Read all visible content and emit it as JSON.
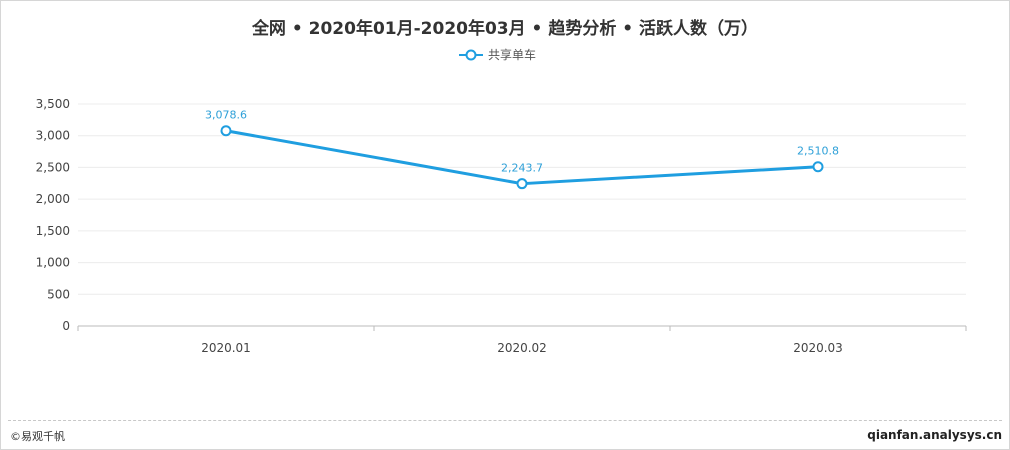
{
  "title": "全网 • 2020年01月-2020年03月 • 趋势分析 • 活跃人数（万）",
  "legend": {
    "label": "共享单车"
  },
  "footer": {
    "copyright": "©易观千帆",
    "site": "qianfan.analysys.cn"
  },
  "colors": {
    "series": "#1f9ee0",
    "grid": "#ececec",
    "axis": "#bbbbbb"
  },
  "chart_data": {
    "type": "line",
    "title": "全网 • 2020年01月-2020年03月 • 趋势分析 • 活跃人数（万）",
    "xlabel": "",
    "ylabel": "",
    "categories": [
      "2020.01",
      "2020.02",
      "2020.03"
    ],
    "series": [
      {
        "name": "共享单车",
        "values": [
          3078.6,
          2243.7,
          2510.8
        ],
        "labels": [
          "3,078.6",
          "2,243.7",
          "2,510.8"
        ]
      }
    ],
    "ylim": [
      0,
      3500
    ],
    "yticks": [
      0,
      500,
      1000,
      1500,
      2000,
      2500,
      3000,
      3500
    ],
    "ytick_labels": [
      "0",
      "500",
      "1,000",
      "1,500",
      "2,000",
      "2,500",
      "3,000",
      "3,500"
    ],
    "grid": true,
    "legend_position": "top-center"
  }
}
